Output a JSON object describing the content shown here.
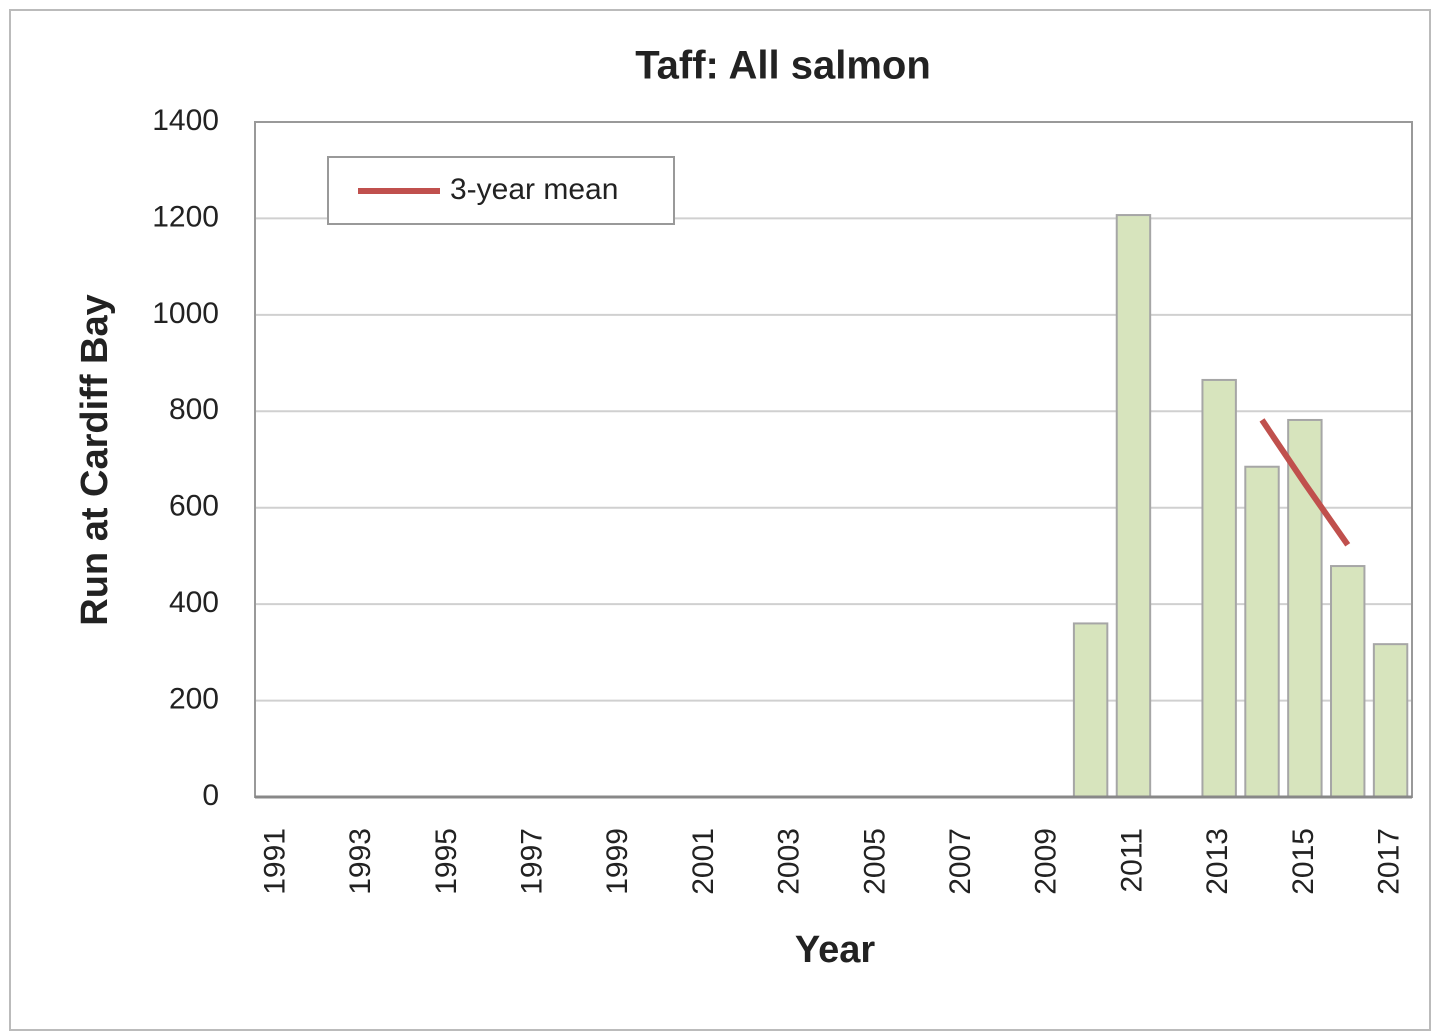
{
  "chart_data": {
    "type": "bar",
    "title": "Taff: All salmon",
    "x_label": "Year",
    "y_label": "Run at Cardiff Bay",
    "categories": [
      "1991",
      null,
      "1993",
      null,
      "1995",
      null,
      "1997",
      null,
      "1999",
      null,
      "2001",
      null,
      "2003",
      null,
      "2005",
      null,
      "2007",
      null,
      "2009",
      null,
      "2011",
      null,
      "2013",
      null,
      "2015",
      null,
      "2017"
    ],
    "series": [
      {
        "color": "#d7e4bd",
        "values": [
          null,
          null,
          null,
          null,
          null,
          null,
          null,
          null,
          null,
          null,
          null,
          null,
          null,
          null,
          null,
          null,
          null,
          null,
          null,
          360,
          1207,
          null,
          865,
          685,
          782,
          479,
          317
        ]
      },
      {
        "name": "3-year mean",
        "type": "line",
        "color": "#c0504d",
        "values": [
          null,
          null,
          null,
          null,
          null,
          null,
          null,
          null,
          null,
          null,
          null,
          null,
          null,
          null,
          null,
          null,
          null,
          null,
          null,
          null,
          null,
          null,
          null,
          782,
          650,
          523,
          null
        ]
      }
    ],
    "ylim": [
      0,
      1400
    ],
    "yticks": [
      0,
      200,
      400,
      600,
      800,
      1000,
      1200,
      1400
    ],
    "grid": true,
    "legend": "upper left"
  }
}
